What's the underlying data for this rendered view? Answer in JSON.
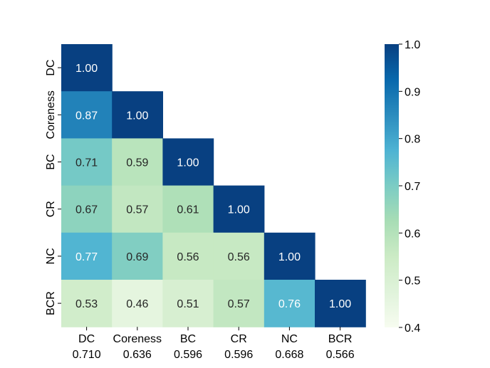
{
  "chart_data": {
    "type": "heatmap",
    "title": "",
    "xlabel": "",
    "ylabel": "",
    "rows": [
      "DC",
      "Coreness",
      "BC",
      "CR",
      "NC",
      "BCR"
    ],
    "columns": [
      "DC",
      "Coreness",
      "BC",
      "CR",
      "NC",
      "BCR"
    ],
    "column_scores": [
      "0.710",
      "0.636",
      "0.596",
      "0.596",
      "0.668",
      "0.566"
    ],
    "lower_triangle_values": [
      [
        1.0
      ],
      [
        0.87,
        1.0
      ],
      [
        0.71,
        0.59,
        1.0
      ],
      [
        0.67,
        0.57,
        0.61,
        1.0
      ],
      [
        0.77,
        0.69,
        0.56,
        0.56,
        1.0
      ],
      [
        0.53,
        0.46,
        0.51,
        0.57,
        0.76,
        1.0
      ]
    ],
    "colormap": "GnBu",
    "vmin": 0.4,
    "vmax": 1.0,
    "colorbar_ticks": [
      "0.4",
      "0.5",
      "0.6",
      "0.7",
      "0.8",
      "0.9",
      "1.0"
    ]
  }
}
